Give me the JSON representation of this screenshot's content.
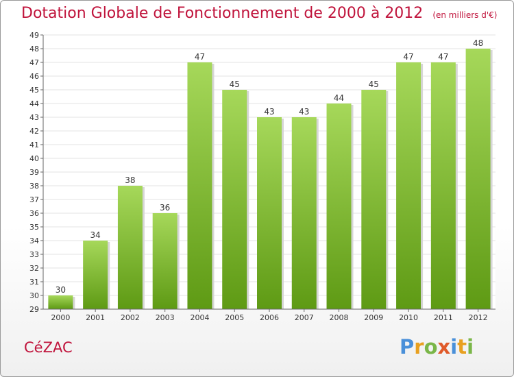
{
  "title": "Dotation Globale de Fonctionnement de 2000 à 2012",
  "subtitle": "(en milliers d'€)",
  "town": "CéZAC",
  "logo": {
    "letters": [
      "P",
      "r",
      "o",
      "x",
      "i",
      "t",
      "i"
    ],
    "colors": [
      "#4a90d9",
      "#e8a020",
      "#7ab648",
      "#e05a2a",
      "#4a90d9",
      "#e8a020",
      "#7ab648"
    ]
  },
  "colors": {
    "bar_top": "#a6d85a",
    "bar_bottom": "#5e9a14",
    "title": "#c0143c"
  },
  "chart_data": {
    "type": "bar",
    "categories": [
      "2000",
      "2001",
      "2002",
      "2003",
      "2004",
      "2005",
      "2006",
      "2007",
      "2008",
      "2009",
      "2010",
      "2011",
      "2012"
    ],
    "values": [
      30,
      34,
      38,
      36,
      47,
      45,
      43,
      43,
      44,
      45,
      47,
      47,
      48
    ],
    "ylim": [
      29,
      49
    ],
    "yticks": [
      29,
      30,
      31,
      32,
      33,
      34,
      35,
      36,
      37,
      38,
      39,
      40,
      41,
      42,
      43,
      44,
      45,
      46,
      47,
      48,
      49
    ],
    "grid": true
  }
}
